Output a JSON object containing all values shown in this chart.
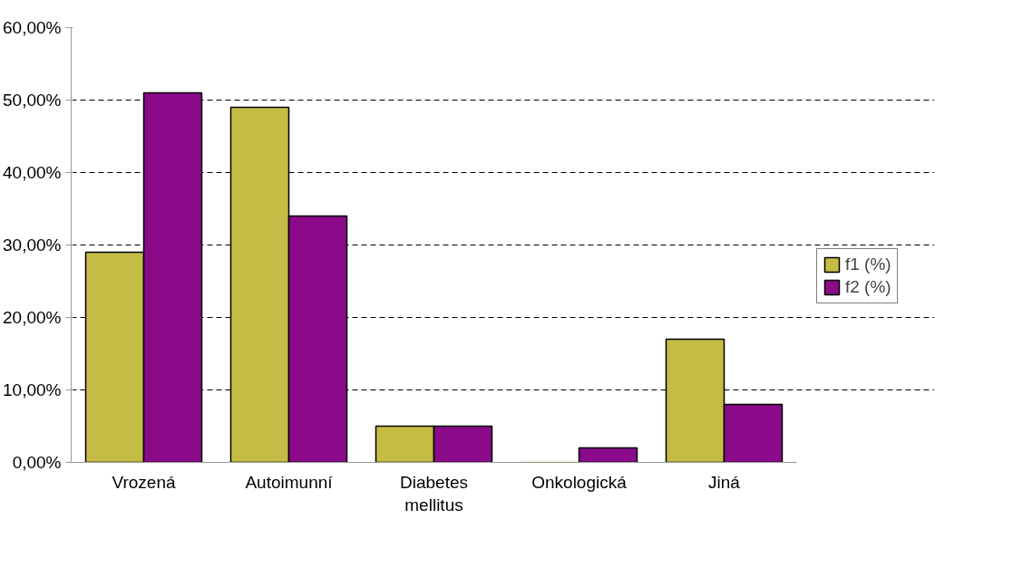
{
  "chart_data": {
    "type": "bar",
    "categories": [
      "Vrozená",
      "Autoimunní",
      "Diabetes mellitus",
      "Onkologická",
      "Jiná"
    ],
    "series": [
      {
        "name": "f1 (%)",
        "color": "#c4bc44",
        "values": [
          29,
          49,
          5,
          0,
          17
        ]
      },
      {
        "name": "f2 (%)",
        "color": "#8a0a8a",
        "values": [
          51,
          34,
          5,
          2,
          8
        ]
      }
    ],
    "ylim": [
      0,
      60
    ],
    "yticks": [
      {
        "value": 0,
        "label": "0,00%"
      },
      {
        "value": 10,
        "label": "10,00%"
      },
      {
        "value": 20,
        "label": "20,00%"
      },
      {
        "value": 30,
        "label": "30,00%"
      },
      {
        "value": 40,
        "label": "40,00%"
      },
      {
        "value": 50,
        "label": "50,00%"
      },
      {
        "value": 60,
        "label": "60,00%"
      }
    ],
    "grid": "y",
    "legend": "right"
  }
}
